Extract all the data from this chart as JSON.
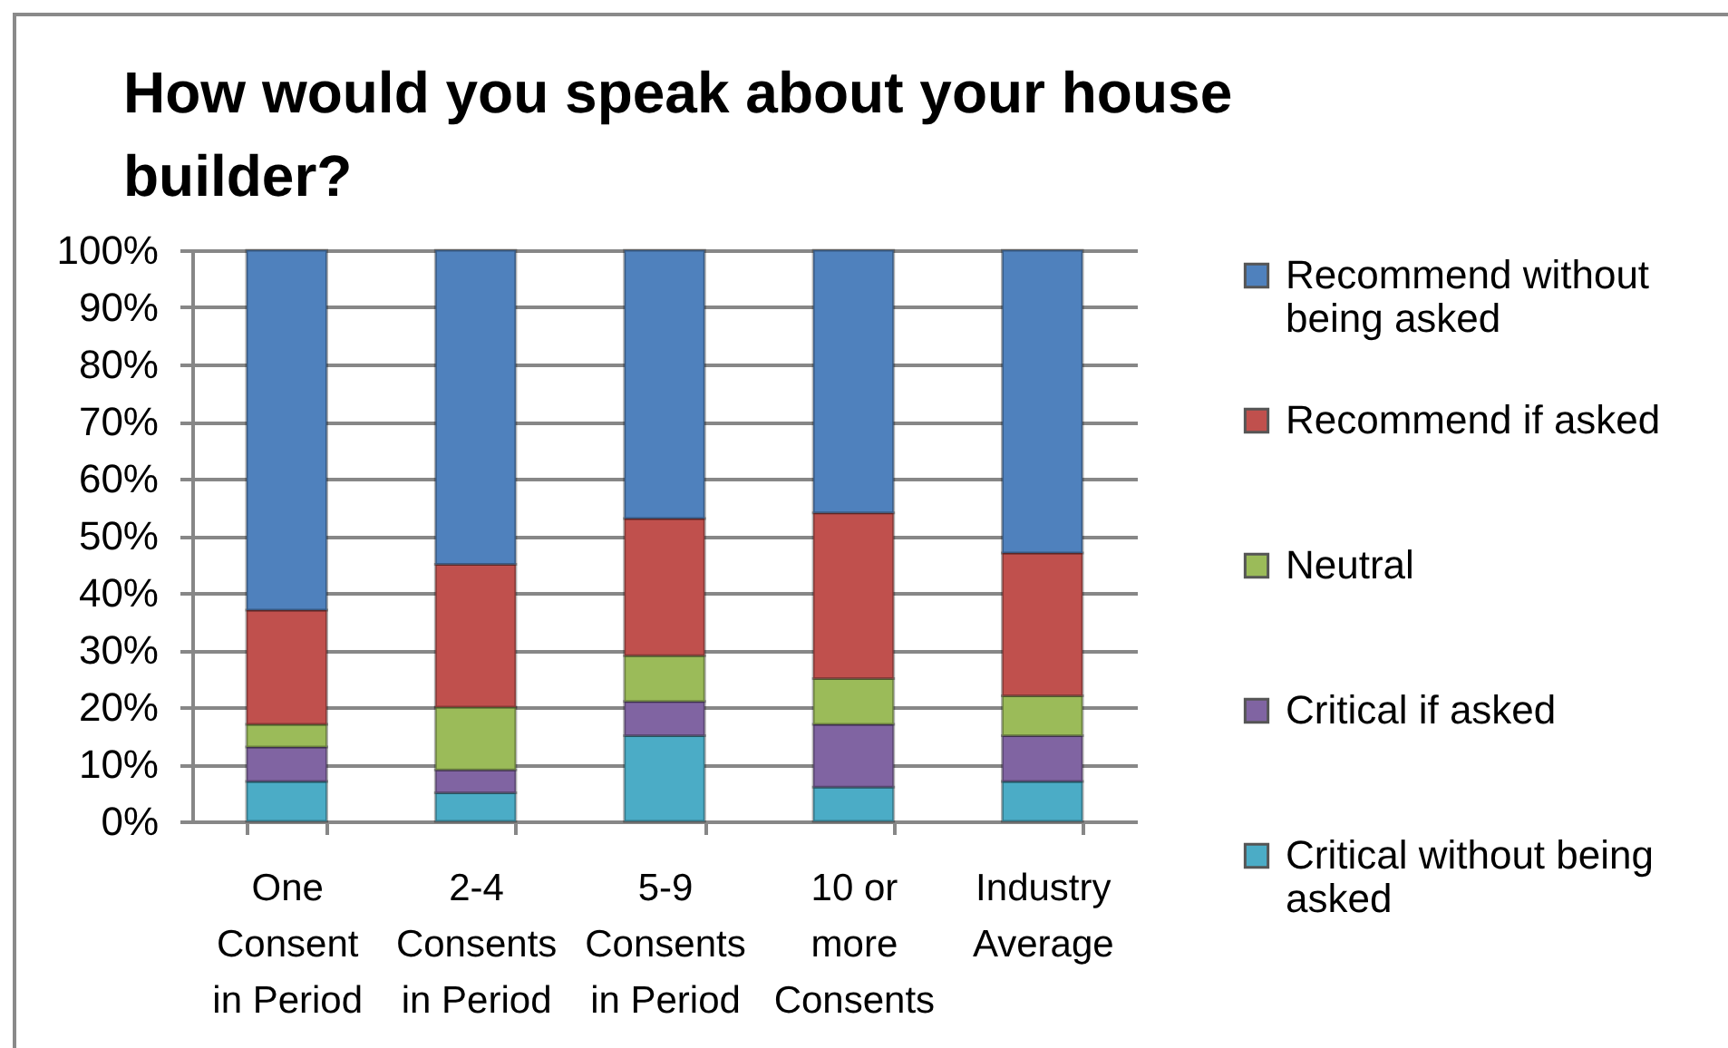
{
  "chart_data": {
    "type": "bar",
    "title": "How would you speak about your house builder?",
    "categories": [
      "One Consent in Period",
      "2-4 Consents in Period",
      "5-9 Consents in Period",
      "10 or more Consents",
      "Industry Average"
    ],
    "stacked": true,
    "series": [
      {
        "name": "Critical without being asked",
        "color": "#4bacc6",
        "values": [
          7,
          5,
          15,
          6,
          7
        ]
      },
      {
        "name": "Critical if asked",
        "color": "#8064a2",
        "values": [
          6,
          4,
          6,
          11,
          8
        ]
      },
      {
        "name": "Neutral",
        "color": "#9bbb59",
        "values": [
          4,
          11,
          8,
          8,
          7
        ]
      },
      {
        "name": "Recommend if asked",
        "color": "#c0504d",
        "values": [
          20,
          25,
          24,
          29,
          25
        ]
      },
      {
        "name": "Recommend without being asked",
        "color": "#4f81bd",
        "values": [
          63,
          55,
          47,
          46,
          53
        ]
      }
    ],
    "ylim": [
      0,
      100
    ],
    "yticks": [
      {
        "value": 0,
        "label": "0%"
      },
      {
        "value": 10,
        "label": "10%"
      },
      {
        "value": 20,
        "label": "20%"
      },
      {
        "value": 30,
        "label": "30%"
      },
      {
        "value": 40,
        "label": "40%"
      },
      {
        "value": 50,
        "label": "50%"
      },
      {
        "value": 60,
        "label": "60%"
      },
      {
        "value": 70,
        "label": "70%"
      },
      {
        "value": 80,
        "label": "80%"
      },
      {
        "value": 90,
        "label": "90%"
      },
      {
        "value": 100,
        "label": "100%"
      }
    ],
    "grid": "y",
    "legend": "right"
  }
}
